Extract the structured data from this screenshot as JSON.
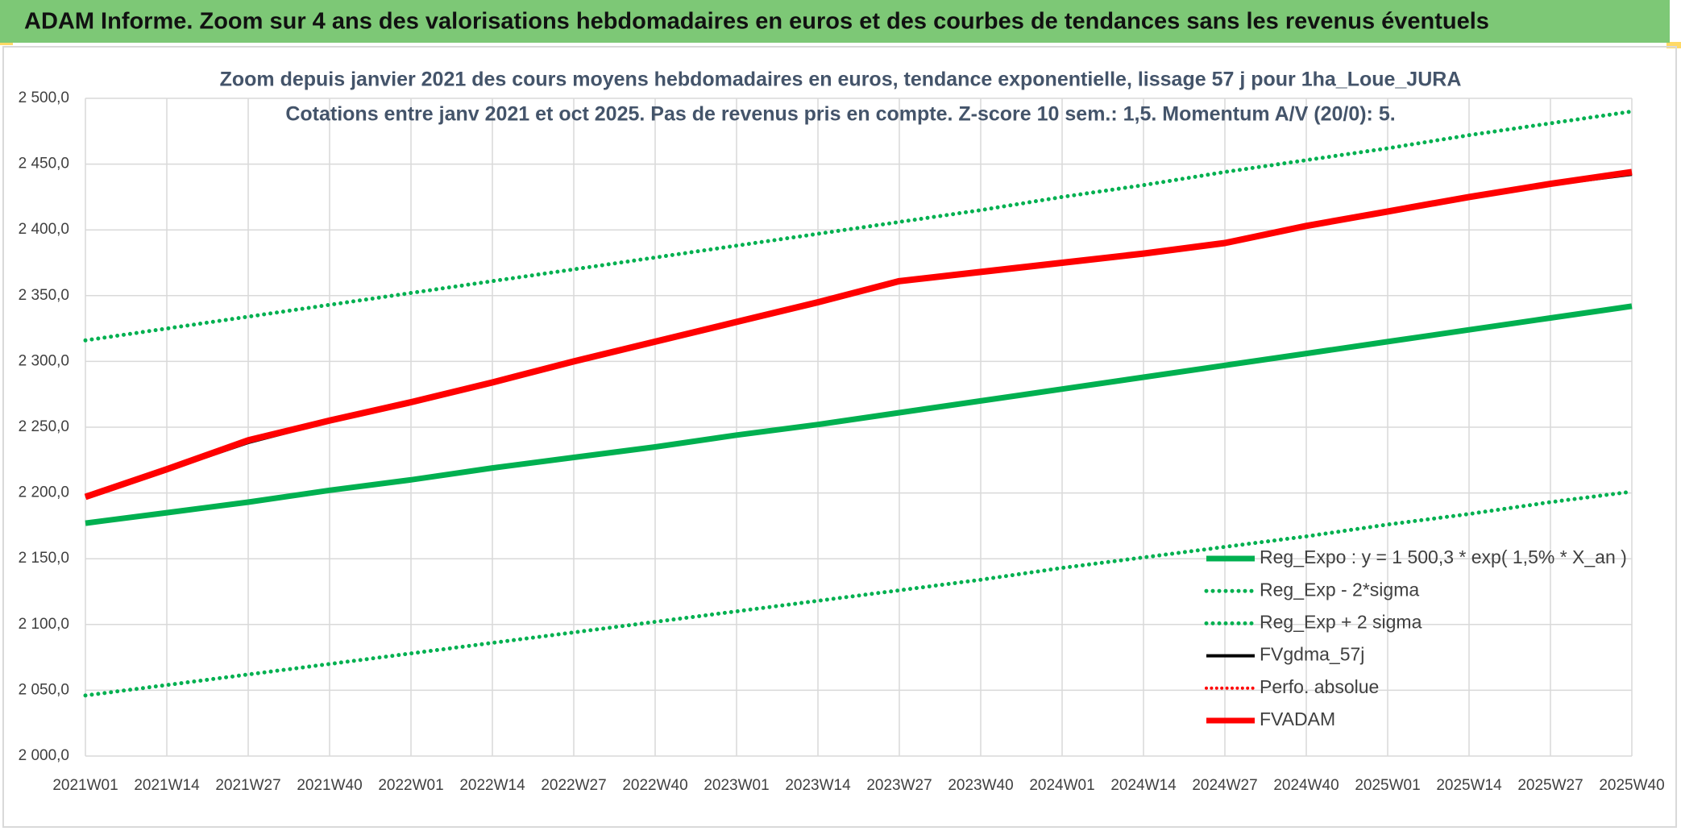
{
  "header": {
    "title": "ADAM Informe. Zoom sur 4 ans des valorisations hebdomadaires en euros et des courbes de tendances sans les revenus éventuels"
  },
  "chart_data": {
    "type": "line",
    "title": "Zoom depuis janvier 2021 des cours moyens hebdomadaires en euros, tendance exponentielle, lissage 57 j pour 1ha_Loue_JURA",
    "subtitle": "Cotations entre janv 2021 et oct 2025. Pas de revenus pris en compte. Z-score 10 sem.: 1,5. Momentum A/V (20/0): 5.",
    "categories": [
      "2021W01",
      "2021W14",
      "2021W27",
      "2021W40",
      "2022W01",
      "2022W14",
      "2022W27",
      "2022W40",
      "2023W01",
      "2023W14",
      "2023W27",
      "2023W40",
      "2024W01",
      "2024W14",
      "2024W27",
      "2024W40",
      "2025W01",
      "2025W14",
      "2025W27",
      "2025W40"
    ],
    "series": [
      {
        "name": "Reg_Expo : y = 1 500,3 * exp( 1,5% *  X_an )",
        "color": "#00b050",
        "style": "solid",
        "width": 7,
        "values": [
          2177,
          2185,
          2193,
          2202,
          2210,
          2219,
          2227,
          2235,
          2244,
          2252,
          2261,
          2270,
          2279,
          2288,
          2297,
          2306,
          2315,
          2324,
          2333,
          2342
        ]
      },
      {
        "name": "Reg_Exp - 2*sigma",
        "color": "#00b050",
        "style": "dotted",
        "width": 5,
        "values": [
          2046,
          2054,
          2062,
          2070,
          2078,
          2086,
          2094,
          2102,
          2110,
          2118,
          2126,
          2134,
          2143,
          2151,
          2159,
          2167,
          2176,
          2184,
          2193,
          2201
        ]
      },
      {
        "name": "Reg_Exp + 2 sigma",
        "color": "#00b050",
        "style": "dotted",
        "width": 5,
        "values": [
          2316,
          2325,
          2334,
          2343,
          2352,
          2361,
          2370,
          2379,
          2388,
          2397,
          2406,
          2415,
          2425,
          2434,
          2444,
          2453,
          2462,
          2472,
          2481,
          2490
        ]
      },
      {
        "name": "FVgdma_57j",
        "color": "#000000",
        "style": "solid",
        "width": 3,
        "values": [
          2197,
          2217,
          2238,
          2254,
          2269,
          2284,
          2300,
          2315,
          2330,
          2345,
          2360,
          2368,
          2375,
          2382,
          2390,
          2403,
          2414,
          2425,
          2434,
          2442
        ]
      },
      {
        "name": "Perfo. absolue",
        "color": "#ff0000",
        "style": "dotted",
        "width": 4,
        "values": [
          null,
          null,
          null,
          null,
          null,
          null,
          null,
          null,
          null,
          null,
          null,
          null,
          null,
          null,
          null,
          null,
          null,
          null,
          null,
          null
        ]
      },
      {
        "name": "FVADAM",
        "color": "#ff0000",
        "style": "solid",
        "width": 8,
        "values": [
          2197,
          2218,
          2240,
          2255,
          2269,
          2284,
          2300,
          2315,
          2330,
          2345,
          2361,
          2368,
          2375,
          2382,
          2390,
          2403,
          2414,
          2425,
          2435,
          2444
        ]
      }
    ],
    "ylim": [
      2000,
      2500
    ],
    "yticks": [
      {
        "value": 2000,
        "label": "2 000,0"
      },
      {
        "value": 2050,
        "label": "2 050,0"
      },
      {
        "value": 2100,
        "label": "2 100,0"
      },
      {
        "value": 2150,
        "label": "2 150,0"
      },
      {
        "value": 2200,
        "label": "2 200,0"
      },
      {
        "value": 2250,
        "label": "2 250,0"
      },
      {
        "value": 2300,
        "label": "2 300,0"
      },
      {
        "value": 2350,
        "label": "2 350,0"
      },
      {
        "value": 2400,
        "label": "2 400,0"
      },
      {
        "value": 2450,
        "label": "2 450,0"
      },
      {
        "value": 2500,
        "label": "2 500,0"
      }
    ],
    "grid": true,
    "legend": "lower right"
  }
}
